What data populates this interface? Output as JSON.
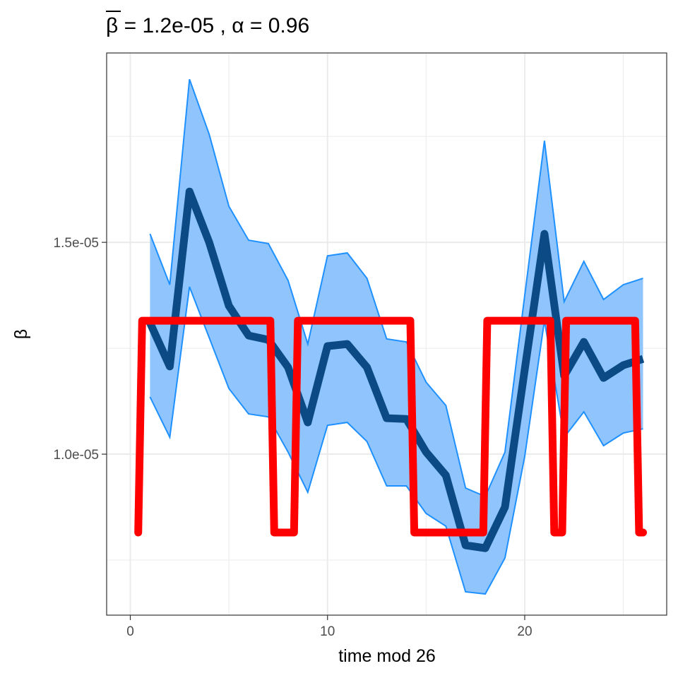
{
  "chart_data": {
    "type": "line",
    "title": {
      "beta_symbol": "β",
      "rest": " = 1.2e-05 , α = 0.96"
    },
    "xlabel": "time mod 26",
    "ylabel": "β",
    "xlim": [
      -1.2,
      27.2
    ],
    "ylim": [
      6.2e-06,
      1.947e-05
    ],
    "x_ticks": [
      0,
      10,
      20
    ],
    "x_tick_labels": [
      "0",
      "10",
      "20"
    ],
    "y_ticks": [
      1e-05,
      1.5e-05
    ],
    "y_tick_labels": [
      "1.0e-05",
      "1.5e-05"
    ],
    "x_minor_ticks": [
      5,
      15,
      25
    ],
    "y_minor_ticks": [
      7.5e-06,
      1.25e-05,
      1.75e-05
    ],
    "grid": true,
    "series": [
      {
        "kind": "ribbon",
        "x": [
          1,
          2,
          3,
          4,
          5,
          6,
          7,
          8,
          9,
          10,
          11,
          12,
          13,
          14,
          15,
          16,
          17,
          18,
          19,
          20,
          21,
          22,
          23,
          24,
          25,
          26
        ],
        "lower": [
          1.135e-05,
          1.04e-05,
          1.395e-05,
          1.275e-05,
          1.155e-05,
          1.095e-05,
          1.088e-05,
          1.005e-05,
          9.1e-06,
          1.068e-05,
          1.075e-05,
          1.03e-05,
          9.25e-06,
          9.25e-06,
          8.6e-06,
          8.3e-06,
          6.75e-06,
          6.7e-06,
          7.55e-06,
          9.95e-06,
          1.315e-05,
          1.04e-05,
          1.1e-05,
          1.02e-05,
          1.05e-05,
          1.06e-05
        ],
        "upper": [
          1.52e-05,
          1.4e-05,
          1.885e-05,
          1.755e-05,
          1.585e-05,
          1.505e-05,
          1.497e-05,
          1.41e-05,
          1.26e-05,
          1.468e-05,
          1.475e-05,
          1.415e-05,
          1.272e-05,
          1.265e-05,
          1.17e-05,
          1.115e-05,
          9.2e-06,
          9e-06,
          1.005e-05,
          1.375e-05,
          1.74e-05,
          1.36e-05,
          1.455e-05,
          1.365e-05,
          1.4e-05,
          1.415e-05
        ],
        "color": "#1e90ff",
        "fill": "#8fc5fc"
      },
      {
        "kind": "line",
        "x": [
          1,
          2,
          3,
          4,
          5,
          6,
          7,
          8,
          9,
          10,
          11,
          12,
          13,
          14,
          15,
          16,
          17,
          18,
          19,
          20,
          21,
          22,
          23,
          24,
          25,
          26
        ],
        "y": [
          1.31e-05,
          1.207e-05,
          1.62e-05,
          1.5e-05,
          1.35e-05,
          1.28e-05,
          1.27e-05,
          1.205e-05,
          1.075e-05,
          1.255e-05,
          1.26e-05,
          1.205e-05,
          1.085e-05,
          1.083e-05,
          1.005e-05,
          9.5e-06,
          7.85e-06,
          7.78e-06,
          8.75e-06,
          1.2e-05,
          1.52e-05,
          1.185e-05,
          1.265e-05,
          1.18e-05,
          1.21e-05,
          1.225e-05
        ],
        "color": "#0c4a86"
      },
      {
        "kind": "step",
        "x": [
          0.4,
          0.6,
          7.1,
          7.3,
          8.3,
          8.5,
          14.2,
          14.4,
          17.9,
          18.1,
          21.3,
          21.5,
          21.9,
          22.1,
          25.6,
          25.8,
          26.0
        ],
        "y": [
          8.15e-06,
          1.315e-05,
          1.315e-05,
          8.15e-06,
          8.15e-06,
          1.315e-05,
          1.315e-05,
          8.15e-06,
          8.15e-06,
          1.315e-05,
          1.315e-05,
          8.15e-06,
          8.15e-06,
          1.315e-05,
          1.315e-05,
          8.15e-06,
          8.15e-06
        ],
        "color": "#ff0000"
      }
    ]
  }
}
